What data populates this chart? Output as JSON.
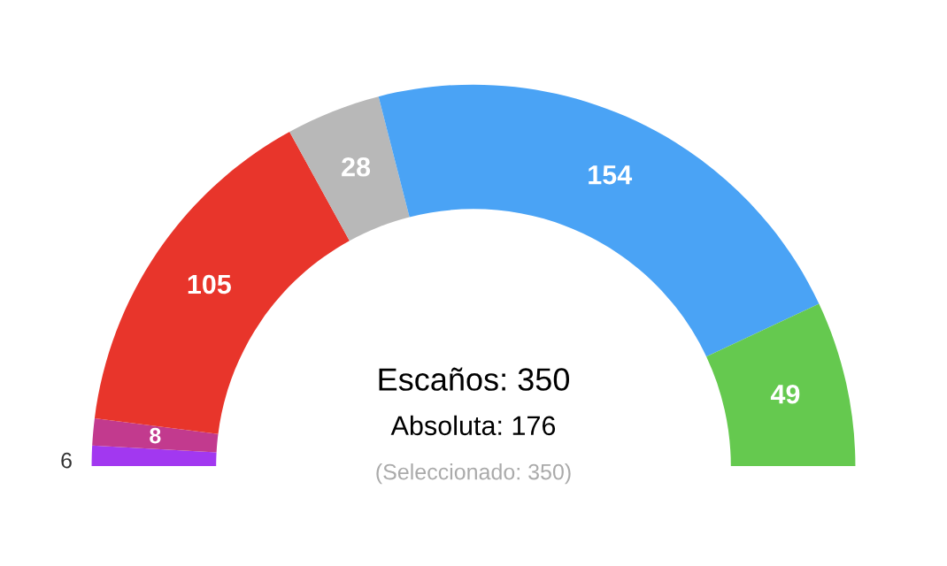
{
  "chart_data": {
    "type": "donut",
    "categories": [
      null,
      null,
      null,
      null,
      null,
      null
    ],
    "values": [
      6,
      8,
      105,
      28,
      154,
      49
    ],
    "colors": [
      "#a238f0",
      "#c23a8e",
      "#e8352b",
      "#b8b8b8",
      "#4aa3f5",
      "#65c94f"
    ],
    "data_labels": true,
    "annotations": [
      "Escaños: 350",
      "Absoluta: 176",
      "(Seleccionado: 350)"
    ]
  }
}
